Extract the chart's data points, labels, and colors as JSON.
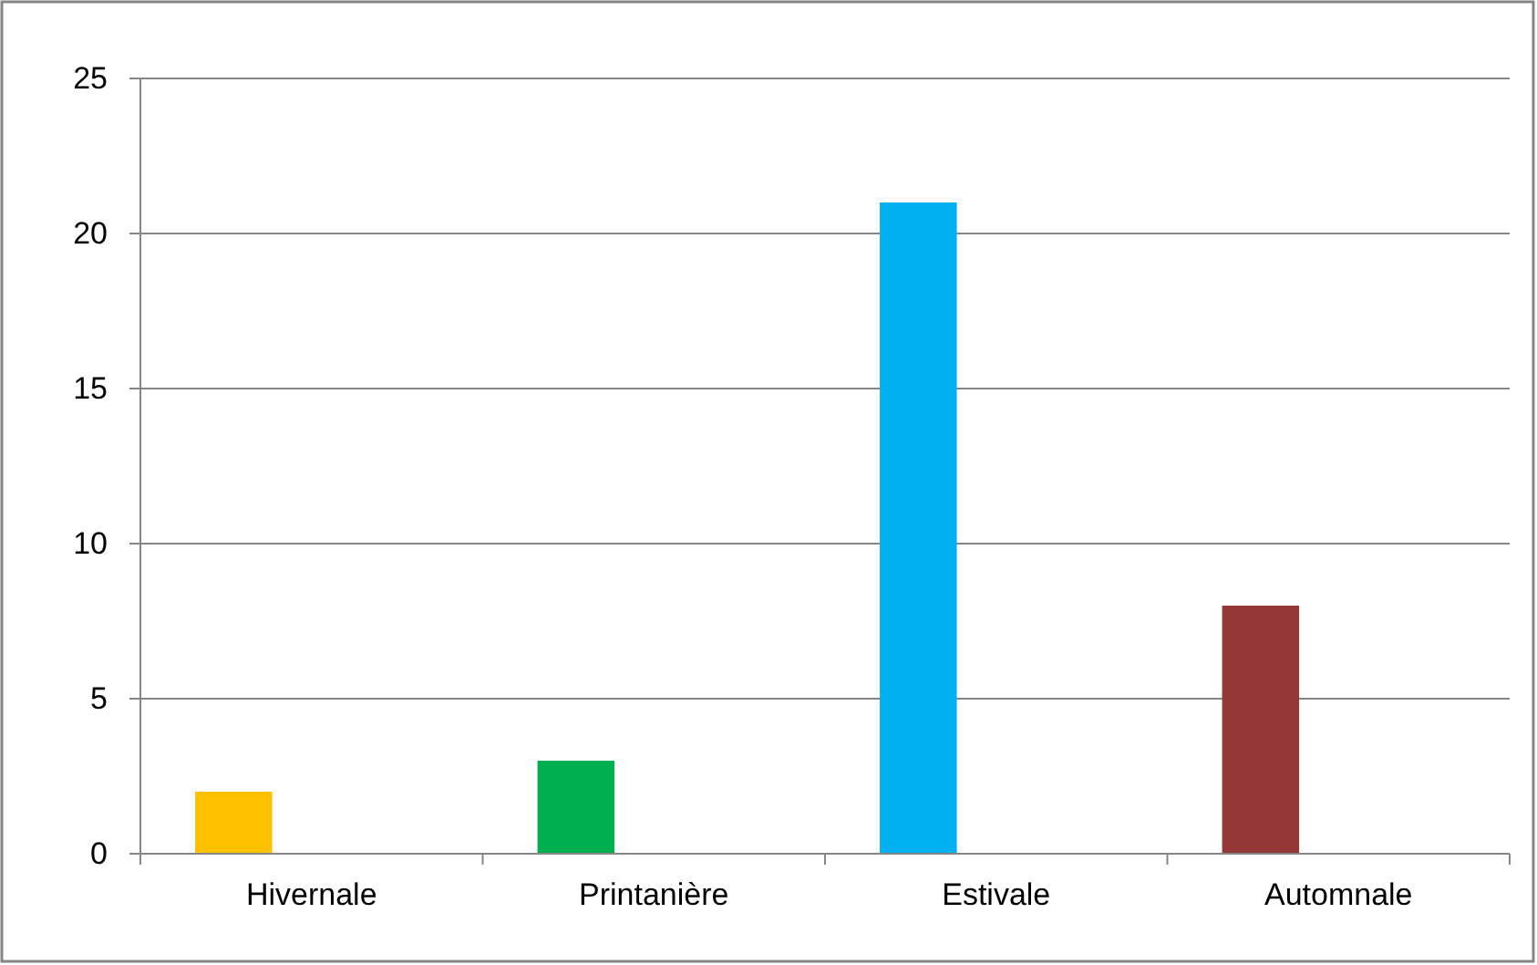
{
  "chart_data": {
    "type": "bar",
    "categories": [
      "Hivernale",
      "Printanière",
      "Estivale",
      "Automnale"
    ],
    "values": [
      2,
      3,
      21,
      8
    ],
    "colors": [
      "#ffc000",
      "#00b050",
      "#00b0f0",
      "#953735"
    ],
    "ylim": [
      0,
      25
    ],
    "yticks": [
      0,
      5,
      10,
      15,
      20,
      25
    ],
    "grid": "y"
  }
}
